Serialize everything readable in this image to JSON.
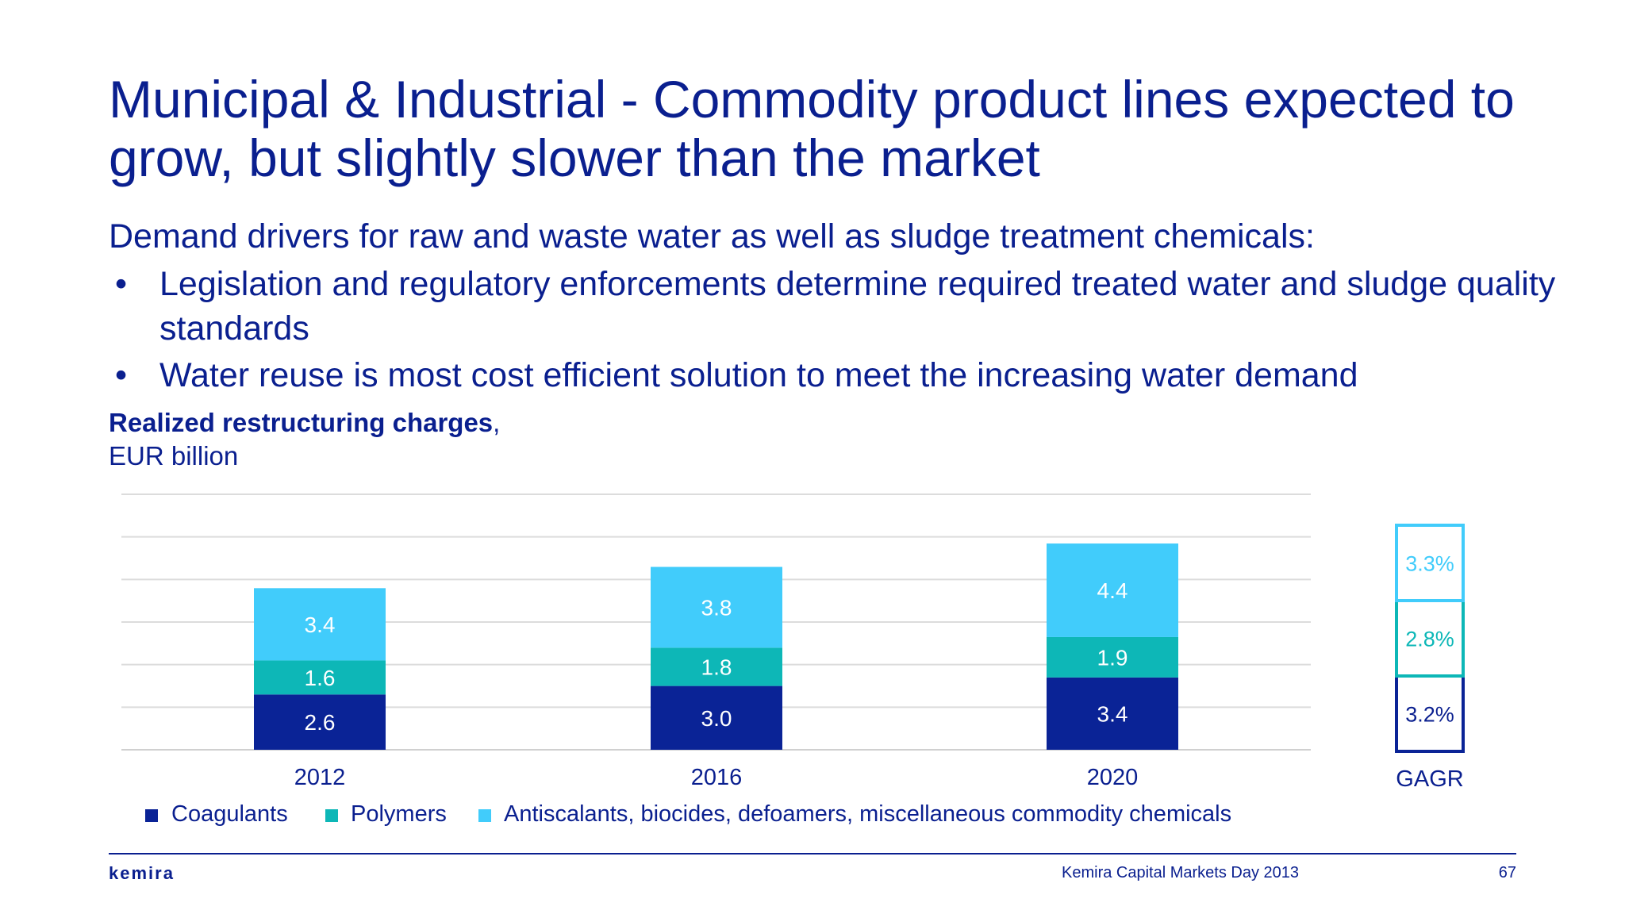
{
  "slide": {
    "title": "Municipal & Industrial - Commodity product lines expected to grow, but slightly slower than the market",
    "intro": "Demand drivers for raw and waste water as well as sludge treatment chemicals:",
    "bullet_symbol": "•",
    "bullets": [
      "Legislation and regulatory enforcements determine required treated water and sludge quality standards",
      "Water reuse is most cost efficient solution to meet the increasing water demand"
    ],
    "footer_text": "Kemira Capital Markets Day 2013",
    "page_number": "67",
    "logo": "kemira"
  },
  "chart_data": {
    "type": "bar",
    "stacked": true,
    "title_bold": "Realized restructuring charges",
    "title_suffix": ",",
    "unit": "EUR billion",
    "categories": [
      "2012",
      "2016",
      "2020"
    ],
    "series": [
      {
        "name": "Coagulants",
        "values": [
          2.6,
          3.0,
          3.4
        ],
        "color": "#0a2396",
        "label_color": "#ffffff",
        "label": "2.6"
      },
      {
        "name": "Polymers",
        "values": [
          1.6,
          1.8,
          1.9
        ],
        "color": "#0db7b7",
        "label_color": "#ffffff"
      },
      {
        "name": "Antiscalants, biocides, defoamers, miscellaneous commodity chemicals",
        "values": [
          3.4,
          3.8,
          4.4
        ],
        "color": "#41ccfb",
        "label_color": "#ffffff"
      }
    ],
    "value_labels": [
      [
        "2.6",
        "3.0",
        "3.4"
      ],
      [
        "1.6",
        "1.8",
        "1.9"
      ],
      [
        "3.4",
        "3.8",
        "4.4"
      ]
    ],
    "ylim": [
      0,
      12
    ],
    "grid": true,
    "legend_position": "bottom",
    "cagr": {
      "label": "GAGR",
      "values": [
        "3.2%",
        "2.8%",
        "3.3%"
      ],
      "colors": [
        "#0a2396",
        "#0db7b7",
        "#41ccfb"
      ],
      "text_colors": [
        "#0a1f8f",
        "#0db7b7",
        "#41ccfb"
      ]
    }
  }
}
